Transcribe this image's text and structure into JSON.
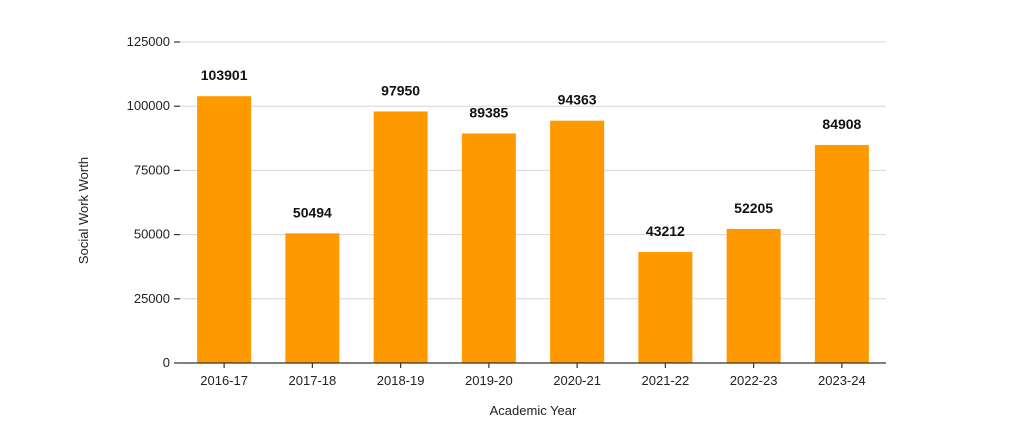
{
  "chart_data": {
    "type": "bar",
    "title": "",
    "xlabel": "Academic Year",
    "ylabel": "Social Work Worth",
    "categories": [
      "2016-17",
      "2017-18",
      "2018-19",
      "2019-20",
      "2020-21",
      "2021-22",
      "2022-23",
      "2023-24"
    ],
    "values": [
      103901,
      50494,
      97950,
      89385,
      94363,
      43212,
      52205,
      84908
    ],
    "ylim": [
      0,
      125000
    ],
    "yticks": [
      "0",
      "25000",
      "50000",
      "75000",
      "100000",
      "125000"
    ],
    "grid": true,
    "legend": "none",
    "bar_color": "#FF9900"
  }
}
